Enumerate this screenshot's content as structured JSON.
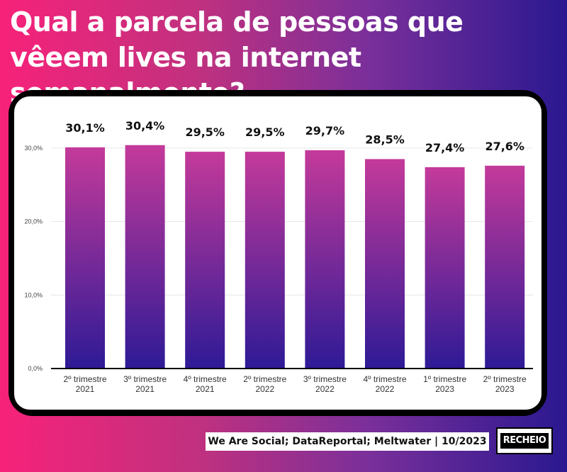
{
  "title": "Qual a parcela de pessoas que vêeem lives na internet semanalmente?",
  "source": "We Are Social; DataReportal; Meltwater | 10/2023",
  "logo": "RECHEIO",
  "colors": {
    "bar_top": "#c43a9a",
    "bar_bottom": "#2e1a96"
  },
  "chart_data": {
    "type": "bar",
    "categories": [
      [
        "2º trimestre",
        "2021"
      ],
      [
        "3º trimestre",
        "2021"
      ],
      [
        "4º trimestre",
        "2021"
      ],
      [
        "2º trimestre",
        "2022"
      ],
      [
        "3º trimestre",
        "2022"
      ],
      [
        "4º trimestre",
        "2022"
      ],
      [
        "1º trimestre",
        "2023"
      ],
      [
        "2º trimestre",
        "2023"
      ]
    ],
    "values": [
      30.1,
      30.4,
      29.5,
      29.5,
      29.7,
      28.5,
      27.4,
      27.6
    ],
    "value_labels": [
      "30,1%",
      "30,4%",
      "29,5%",
      "29,5%",
      "29,7%",
      "28,5%",
      "27,4%",
      "27,6%"
    ],
    "yticks": [
      0,
      10,
      20,
      30
    ],
    "ytick_labels": [
      "0,0%",
      "10,0%",
      "20,0%",
      "30,0%"
    ],
    "ylim": [
      0,
      30
    ],
    "grid": true,
    "legend": "none"
  }
}
